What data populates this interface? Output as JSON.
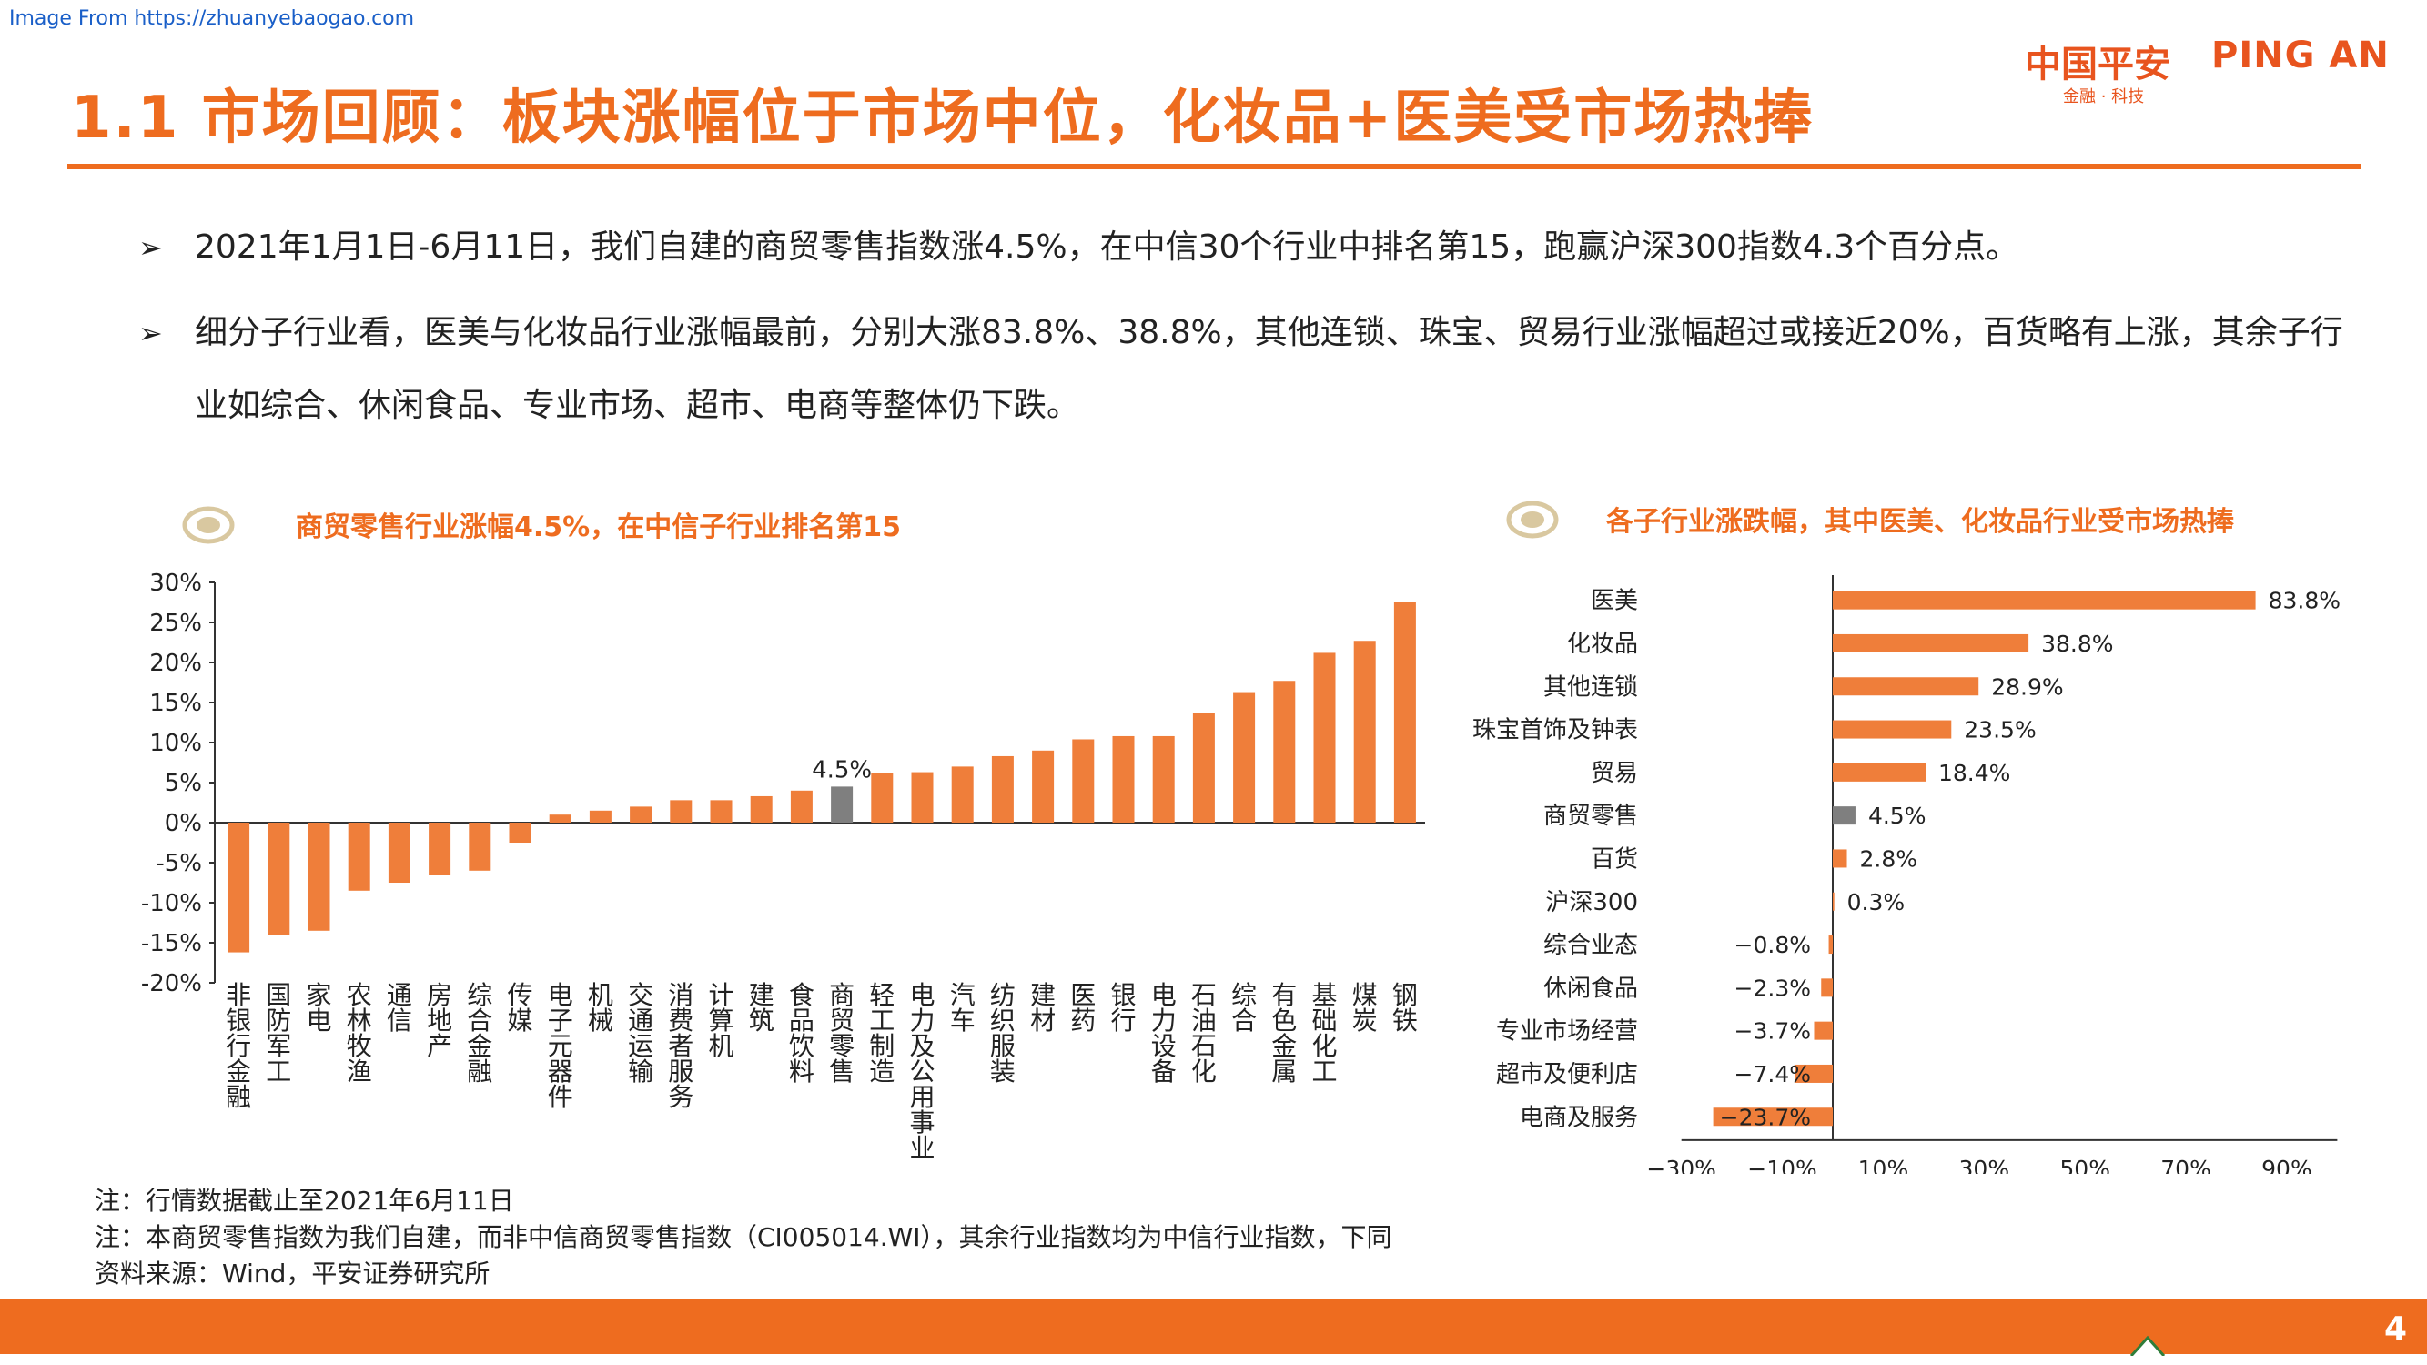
{
  "watermark": "Image From https://zhuanyebaogao.com",
  "title": "1.1 市场回顾：板块涨幅位于市场中位，化妆品+医美受市场热捧",
  "logo": {
    "cn": "中国平安",
    "en": "PING AN",
    "sub": "金融 · 科技",
    "color": "#e8541e"
  },
  "bullets": [
    {
      "mark": "➢",
      "text": "2021年1月1日-6月11日，我们自建的商贸零售指数涨4.5%，在中信30个行业中排名第15，跑赢沪深300指数4.3个百分点。"
    },
    {
      "mark": "➢",
      "text": "细分子行业看，医美与化妆品行业涨幅最前，分别大涨83.8%、38.8%，其他连锁、珠宝、贸易行业涨幅超过或接近20%，百货略有上涨，其余子行业如综合、休闲食品、专业市场、超市、电商等整体仍下跌。"
    }
  ],
  "colors": {
    "accent": "#ee6c1f",
    "bar": "#ef7e3a",
    "highlight": "#7f7f7f"
  },
  "chart_data": [
    {
      "type": "bar",
      "title": "商贸零售行业涨幅4.5%，在中信子行业排名第15",
      "categories": [
        "非银行金融",
        "国防军工",
        "家电",
        "农林牧渔",
        "通信",
        "房地产",
        "综合金融",
        "传媒",
        "电子元器件",
        "机械",
        "交通运输",
        "消费者服务",
        "计算机",
        "建筑",
        "食品饮料",
        "商贸零售",
        "轻工制造",
        "电力及公用事业",
        "汽车",
        "纺织服装",
        "建材",
        "医药",
        "银行",
        "电力设备",
        "石油石化",
        "综合",
        "有色金属",
        "基础化工",
        "煤炭",
        "钢铁"
      ],
      "values": [
        -16.2,
        -14,
        -13.5,
        -8.5,
        -7.5,
        -6.5,
        -6,
        -2.5,
        1,
        1.5,
        2,
        2.8,
        2.8,
        3.3,
        4,
        4.5,
        6.2,
        6.3,
        7,
        8.3,
        9,
        10.4,
        10.8,
        10.8,
        13.7,
        16.3,
        17.7,
        21.2,
        22.7,
        27.6
      ],
      "highlight": "商贸零售",
      "annotation": "4.5%",
      "y_ticks": [
        "30%",
        "25%",
        "20%",
        "15%",
        "10%",
        "5%",
        "0%",
        "-5%",
        "-10%",
        "-15%",
        "-20%"
      ],
      "ylim": [
        -20,
        30
      ],
      "grid": false
    },
    {
      "type": "bar",
      "orientation": "horizontal",
      "title": "各子行业涨跌幅，其中医美、化妆品行业受市场热捧",
      "categories": [
        "医美",
        "化妆品",
        "其他连锁",
        "珠宝首饰及钟表",
        "贸易",
        "商贸零售",
        "百货",
        "沪深300",
        "综合业态",
        "休闲食品",
        "专业市场经营",
        "超市及便利店",
        "电商及服务"
      ],
      "values": [
        83.8,
        38.8,
        28.9,
        23.5,
        18.4,
        4.5,
        2.8,
        0.3,
        -0.8,
        -2.3,
        -3.7,
        -7.4,
        -23.7
      ],
      "labels": [
        "83.8%",
        "38.8%",
        "28.9%",
        "23.5%",
        "18.4%",
        "4.5%",
        "2.8%",
        "0.3%",
        "−0.8%",
        "−2.3%",
        "−3.7%",
        "−7.4%",
        "−23.7%"
      ],
      "highlight": "商贸零售",
      "x_ticks": [
        "−30%",
        "−10%",
        "10%",
        "30%",
        "50%",
        "70%",
        "90%"
      ],
      "xlim": [
        -30,
        100
      ],
      "grid": false
    }
  ],
  "notes": [
    "注：行情数据截止至2021年6月11日",
    "注：本商贸零售指数为我们自建，而非中信商贸零售指数（CI005014.WI），其余行业指数均为中信行业指数，下同",
    "资料来源：Wind，平安证券研究所"
  ],
  "page_number": "4"
}
